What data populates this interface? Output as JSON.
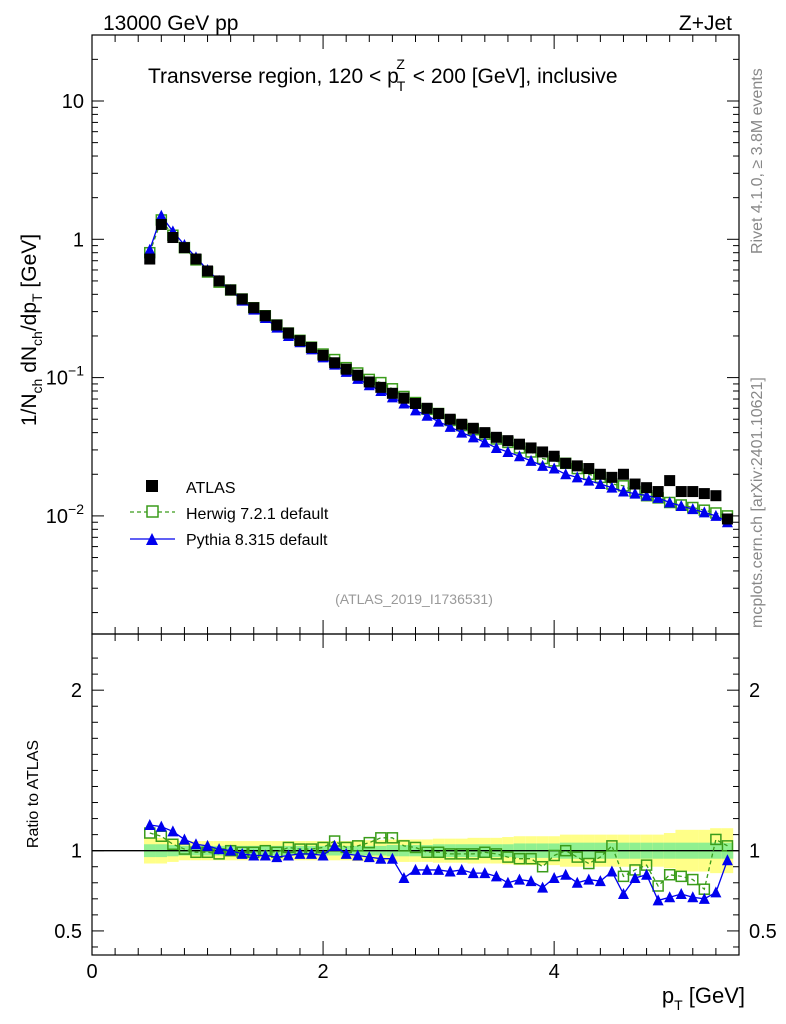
{
  "header": {
    "energy": "13000 GeV pp",
    "process": "Z+Jet",
    "side_label_top": "Rivet 4.1.0, ≥ 3.8M events",
    "side_label_bottom": "mcplots.cern.ch [arXiv:2401.10621]"
  },
  "chart_data": [
    {
      "type": "scatter",
      "panel": "main",
      "title": "Transverse region, 120 < p_T^Z < 200 [GeV], inclusive",
      "ylabel": "1/N_ch dN_ch/dp_T [GeV]",
      "yscale": "log",
      "ylim": [
        0.0014,
        30
      ],
      "xlim": [
        0,
        5.6
      ],
      "watermark": "(ATLAS_2019_I1736531)",
      "y_tick_labels": [
        "10^-2",
        "10^-1",
        "1",
        "10"
      ],
      "y_tick_values": [
        0.01,
        0.1,
        1,
        10
      ],
      "legend_position": "bottom-left",
      "x": [
        0.5,
        0.6,
        0.7,
        0.8,
        0.9,
        1.0,
        1.1,
        1.2,
        1.3,
        1.4,
        1.5,
        1.6,
        1.7,
        1.8,
        1.9,
        2.0,
        2.1,
        2.2,
        2.3,
        2.4,
        2.5,
        2.6,
        2.7,
        2.8,
        2.9,
        3.0,
        3.1,
        3.2,
        3.3,
        3.4,
        3.5,
        3.6,
        3.7,
        3.8,
        3.9,
        4.0,
        4.1,
        4.2,
        4.3,
        4.4,
        4.5,
        4.6,
        4.7,
        4.8,
        4.9,
        5.0,
        5.1,
        5.2,
        5.3,
        5.4,
        5.5
      ],
      "series": [
        {
          "name": "ATLAS",
          "marker": "filled-square",
          "color": "#000000",
          "values": [
            0.72,
            1.28,
            1.03,
            0.87,
            0.72,
            0.59,
            0.5,
            0.43,
            0.37,
            0.32,
            0.28,
            0.24,
            0.21,
            0.185,
            0.165,
            0.145,
            0.128,
            0.115,
            0.104,
            0.093,
            0.085,
            0.077,
            0.071,
            0.065,
            0.06,
            0.055,
            0.05,
            0.046,
            0.043,
            0.04,
            0.037,
            0.035,
            0.033,
            0.031,
            0.029,
            0.027,
            0.024,
            0.023,
            0.022,
            0.02,
            0.019,
            0.02,
            0.017,
            0.016,
            0.015,
            0.018,
            0.015,
            0.015,
            0.0145,
            0.014,
            0.0095
          ]
        },
        {
          "name": "Herwig 7.2.1 default",
          "marker": "open-square",
          "color": "#3a9c1a",
          "values": [
            0.8,
            1.38,
            1.07,
            0.87,
            0.71,
            0.58,
            0.49,
            0.43,
            0.37,
            0.32,
            0.28,
            0.24,
            0.21,
            0.186,
            0.166,
            0.148,
            0.135,
            0.118,
            0.108,
            0.097,
            0.092,
            0.083,
            0.073,
            0.066,
            0.059,
            0.055,
            0.049,
            0.045,
            0.042,
            0.039,
            0.036,
            0.034,
            0.031,
            0.029,
            0.026,
            0.025,
            0.024,
            0.022,
            0.02,
            0.019,
            0.017,
            0.0165,
            0.015,
            0.014,
            0.0135,
            0.0125,
            0.012,
            0.0115,
            0.011,
            0.0105,
            0.01
          ]
        },
        {
          "name": "Pythia 8.315 default",
          "marker": "filled-triangle",
          "color": "#0000ee",
          "values": [
            0.84,
            1.48,
            1.14,
            0.91,
            0.74,
            0.6,
            0.5,
            0.43,
            0.36,
            0.31,
            0.27,
            0.23,
            0.2,
            0.18,
            0.16,
            0.14,
            0.124,
            0.11,
            0.098,
            0.088,
            0.08,
            0.072,
            0.065,
            0.058,
            0.053,
            0.048,
            0.044,
            0.04,
            0.037,
            0.034,
            0.031,
            0.029,
            0.027,
            0.025,
            0.023,
            0.022,
            0.02,
            0.019,
            0.018,
            0.017,
            0.016,
            0.015,
            0.0145,
            0.014,
            0.0135,
            0.0125,
            0.0118,
            0.0112,
            0.0106,
            0.01,
            0.009
          ]
        }
      ]
    },
    {
      "type": "scatter",
      "panel": "ratio",
      "ylabel": "Ratio to ATLAS",
      "xlabel": "p_T [GeV]",
      "ylim": [
        0.35,
        2.35
      ],
      "xlim": [
        0,
        5.6
      ],
      "x_tick_labels": [
        "0",
        "2",
        "4"
      ],
      "x_tick_values": [
        0,
        2,
        4
      ],
      "y_tick_labels": [
        "0.5",
        "1",
        "2"
      ],
      "y_tick_values": [
        0.5,
        1,
        2
      ],
      "band_inner_halfwidth": [
        0.04,
        0.04,
        0.035,
        0.03,
        0.03,
        0.03,
        0.03,
        0.03,
        0.03,
        0.03,
        0.03,
        0.03,
        0.03,
        0.03,
        0.03,
        0.03,
        0.03,
        0.03,
        0.03,
        0.03,
        0.03,
        0.035,
        0.035,
        0.035,
        0.035,
        0.04,
        0.04,
        0.04,
        0.04,
        0.04,
        0.04,
        0.04,
        0.045,
        0.045,
        0.045,
        0.045,
        0.05,
        0.05,
        0.05,
        0.05,
        0.05,
        0.05,
        0.05,
        0.05,
        0.05,
        0.05,
        0.05,
        0.05,
        0.05,
        0.05,
        0.05
      ],
      "band_outer_halfwidth": [
        0.08,
        0.08,
        0.07,
        0.06,
        0.06,
        0.06,
        0.06,
        0.06,
        0.06,
        0.06,
        0.06,
        0.06,
        0.06,
        0.06,
        0.06,
        0.06,
        0.06,
        0.06,
        0.065,
        0.065,
        0.065,
        0.07,
        0.07,
        0.07,
        0.07,
        0.075,
        0.075,
        0.075,
        0.08,
        0.08,
        0.08,
        0.085,
        0.09,
        0.09,
        0.09,
        0.09,
        0.1,
        0.1,
        0.1,
        0.1,
        0.1,
        0.1,
        0.1,
        0.1,
        0.1,
        0.11,
        0.13,
        0.13,
        0.13,
        0.14,
        0.14
      ],
      "series": [
        {
          "name": "Herwig 7.2.1 default",
          "color": "#3a9c1a",
          "values": [
            1.11,
            1.09,
            1.04,
            1.01,
            0.99,
            0.99,
            0.98,
            1.0,
            0.99,
            0.99,
            1.0,
            0.99,
            1.02,
            1.01,
            1.01,
            1.02,
            1.06,
            1.02,
            1.03,
            1.05,
            1.08,
            1.08,
            1.03,
            1.02,
            0.99,
            0.99,
            0.98,
            0.98,
            0.98,
            0.99,
            0.98,
            0.96,
            0.95,
            0.95,
            0.9,
            0.97,
            1.0,
            0.96,
            0.92,
            0.96,
            1.03,
            0.84,
            0.88,
            0.91,
            0.78,
            0.85,
            0.84,
            0.82,
            0.76,
            1.07,
            1.03
          ]
        },
        {
          "name": "Pythia 8.315 default",
          "color": "#0000ee",
          "values": [
            1.16,
            1.15,
            1.12,
            1.07,
            1.04,
            1.03,
            1.01,
            1.0,
            0.98,
            0.97,
            0.97,
            0.96,
            0.97,
            0.98,
            0.98,
            0.97,
            1.03,
            0.98,
            0.97,
            0.96,
            0.95,
            0.95,
            0.83,
            0.88,
            0.88,
            0.88,
            0.87,
            0.88,
            0.86,
            0.86,
            0.84,
            0.8,
            0.82,
            0.81,
            0.77,
            0.83,
            0.85,
            0.8,
            0.82,
            0.81,
            0.87,
            0.73,
            0.83,
            0.85,
            0.69,
            0.71,
            0.73,
            0.71,
            0.7,
            0.74,
            0.94
          ]
        }
      ]
    }
  ]
}
